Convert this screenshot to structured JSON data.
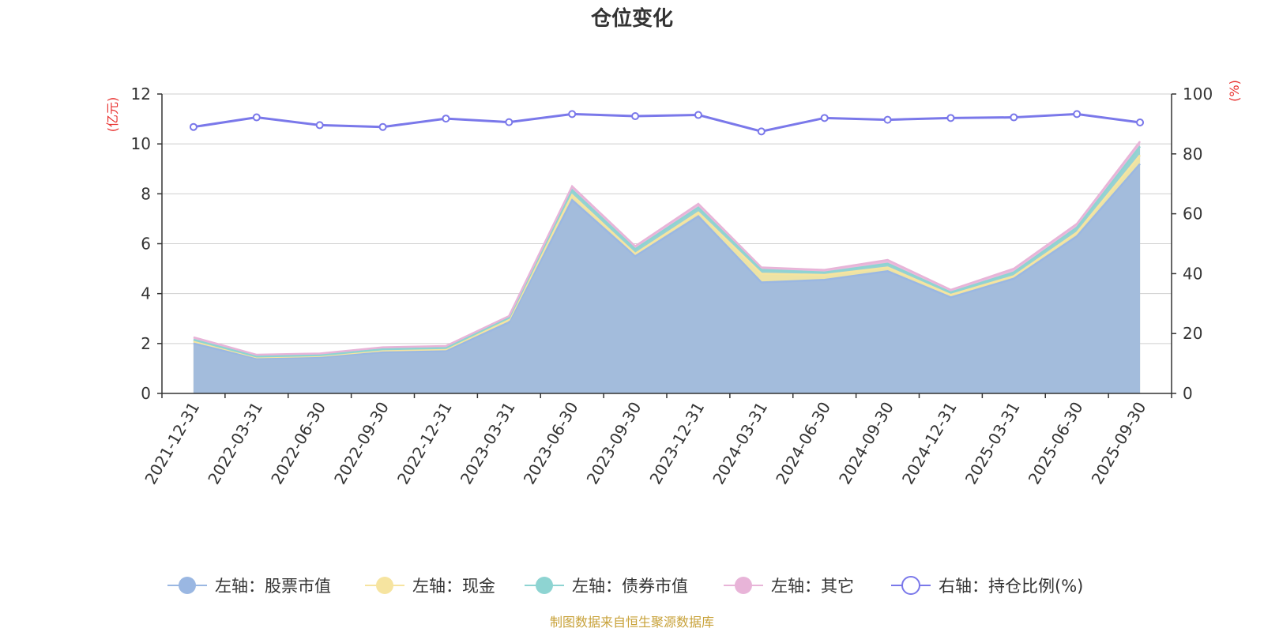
{
  "chart_data": {
    "type": "area",
    "title": "仓位变化",
    "left_axis_unit": "(亿元)",
    "right_axis_unit": "(%)",
    "x": [
      "2021-12-31",
      "2022-03-31",
      "2022-06-30",
      "2022-09-30",
      "2022-12-31",
      "2023-03-31",
      "2023-06-30",
      "2023-09-30",
      "2023-12-31",
      "2024-03-31",
      "2024-06-30",
      "2024-09-30",
      "2024-12-31",
      "2025-03-31",
      "2025-06-30",
      "2025-09-30"
    ],
    "left_ylim": [
      0,
      12
    ],
    "left_yticks": [
      "0",
      "2",
      "4",
      "6",
      "8",
      "10",
      "12"
    ],
    "right_ylim": [
      0,
      100
    ],
    "right_yticks": [
      "0",
      "20",
      "40",
      "60",
      "80",
      "100"
    ],
    "stacked": true,
    "grid": true,
    "legend_position": "bottom",
    "series": [
      {
        "name": "左轴：股票市值",
        "axis": "left",
        "color": "#9ab7e2",
        "values": [
          2.0,
          1.4,
          1.45,
          1.65,
          1.7,
          2.85,
          7.75,
          5.5,
          7.1,
          4.45,
          4.55,
          4.9,
          3.85,
          4.6,
          6.3,
          9.2
        ]
      },
      {
        "name": "左轴：现金",
        "axis": "left",
        "color": "#f6e4a0",
        "values": [
          0.1,
          0.05,
          0.05,
          0.07,
          0.07,
          0.1,
          0.2,
          0.1,
          0.15,
          0.35,
          0.2,
          0.15,
          0.1,
          0.1,
          0.15,
          0.35
        ]
      },
      {
        "name": "左轴：债券市值",
        "axis": "left",
        "color": "#8ed4d2",
        "values": [
          0.05,
          0.03,
          0.03,
          0.05,
          0.05,
          0.08,
          0.2,
          0.18,
          0.2,
          0.15,
          0.1,
          0.15,
          0.1,
          0.15,
          0.2,
          0.35
        ]
      },
      {
        "name": "左轴：其它",
        "axis": "left",
        "color": "#e8b4d8",
        "values": [
          0.1,
          0.07,
          0.07,
          0.08,
          0.08,
          0.07,
          0.15,
          0.12,
          0.15,
          0.1,
          0.1,
          0.15,
          0.1,
          0.15,
          0.15,
          0.2
        ]
      },
      {
        "name": "右轴：持仓比例(%)",
        "axis": "right",
        "type": "line",
        "color": "#7a78ea",
        "values": [
          89.0,
          92.2,
          89.6,
          89.0,
          91.8,
          90.6,
          93.3,
          92.6,
          93.0,
          87.5,
          92.0,
          91.4,
          92.0,
          92.2,
          93.3,
          90.5
        ]
      }
    ]
  },
  "source_note": "制图数据来自恒生聚源数据库"
}
